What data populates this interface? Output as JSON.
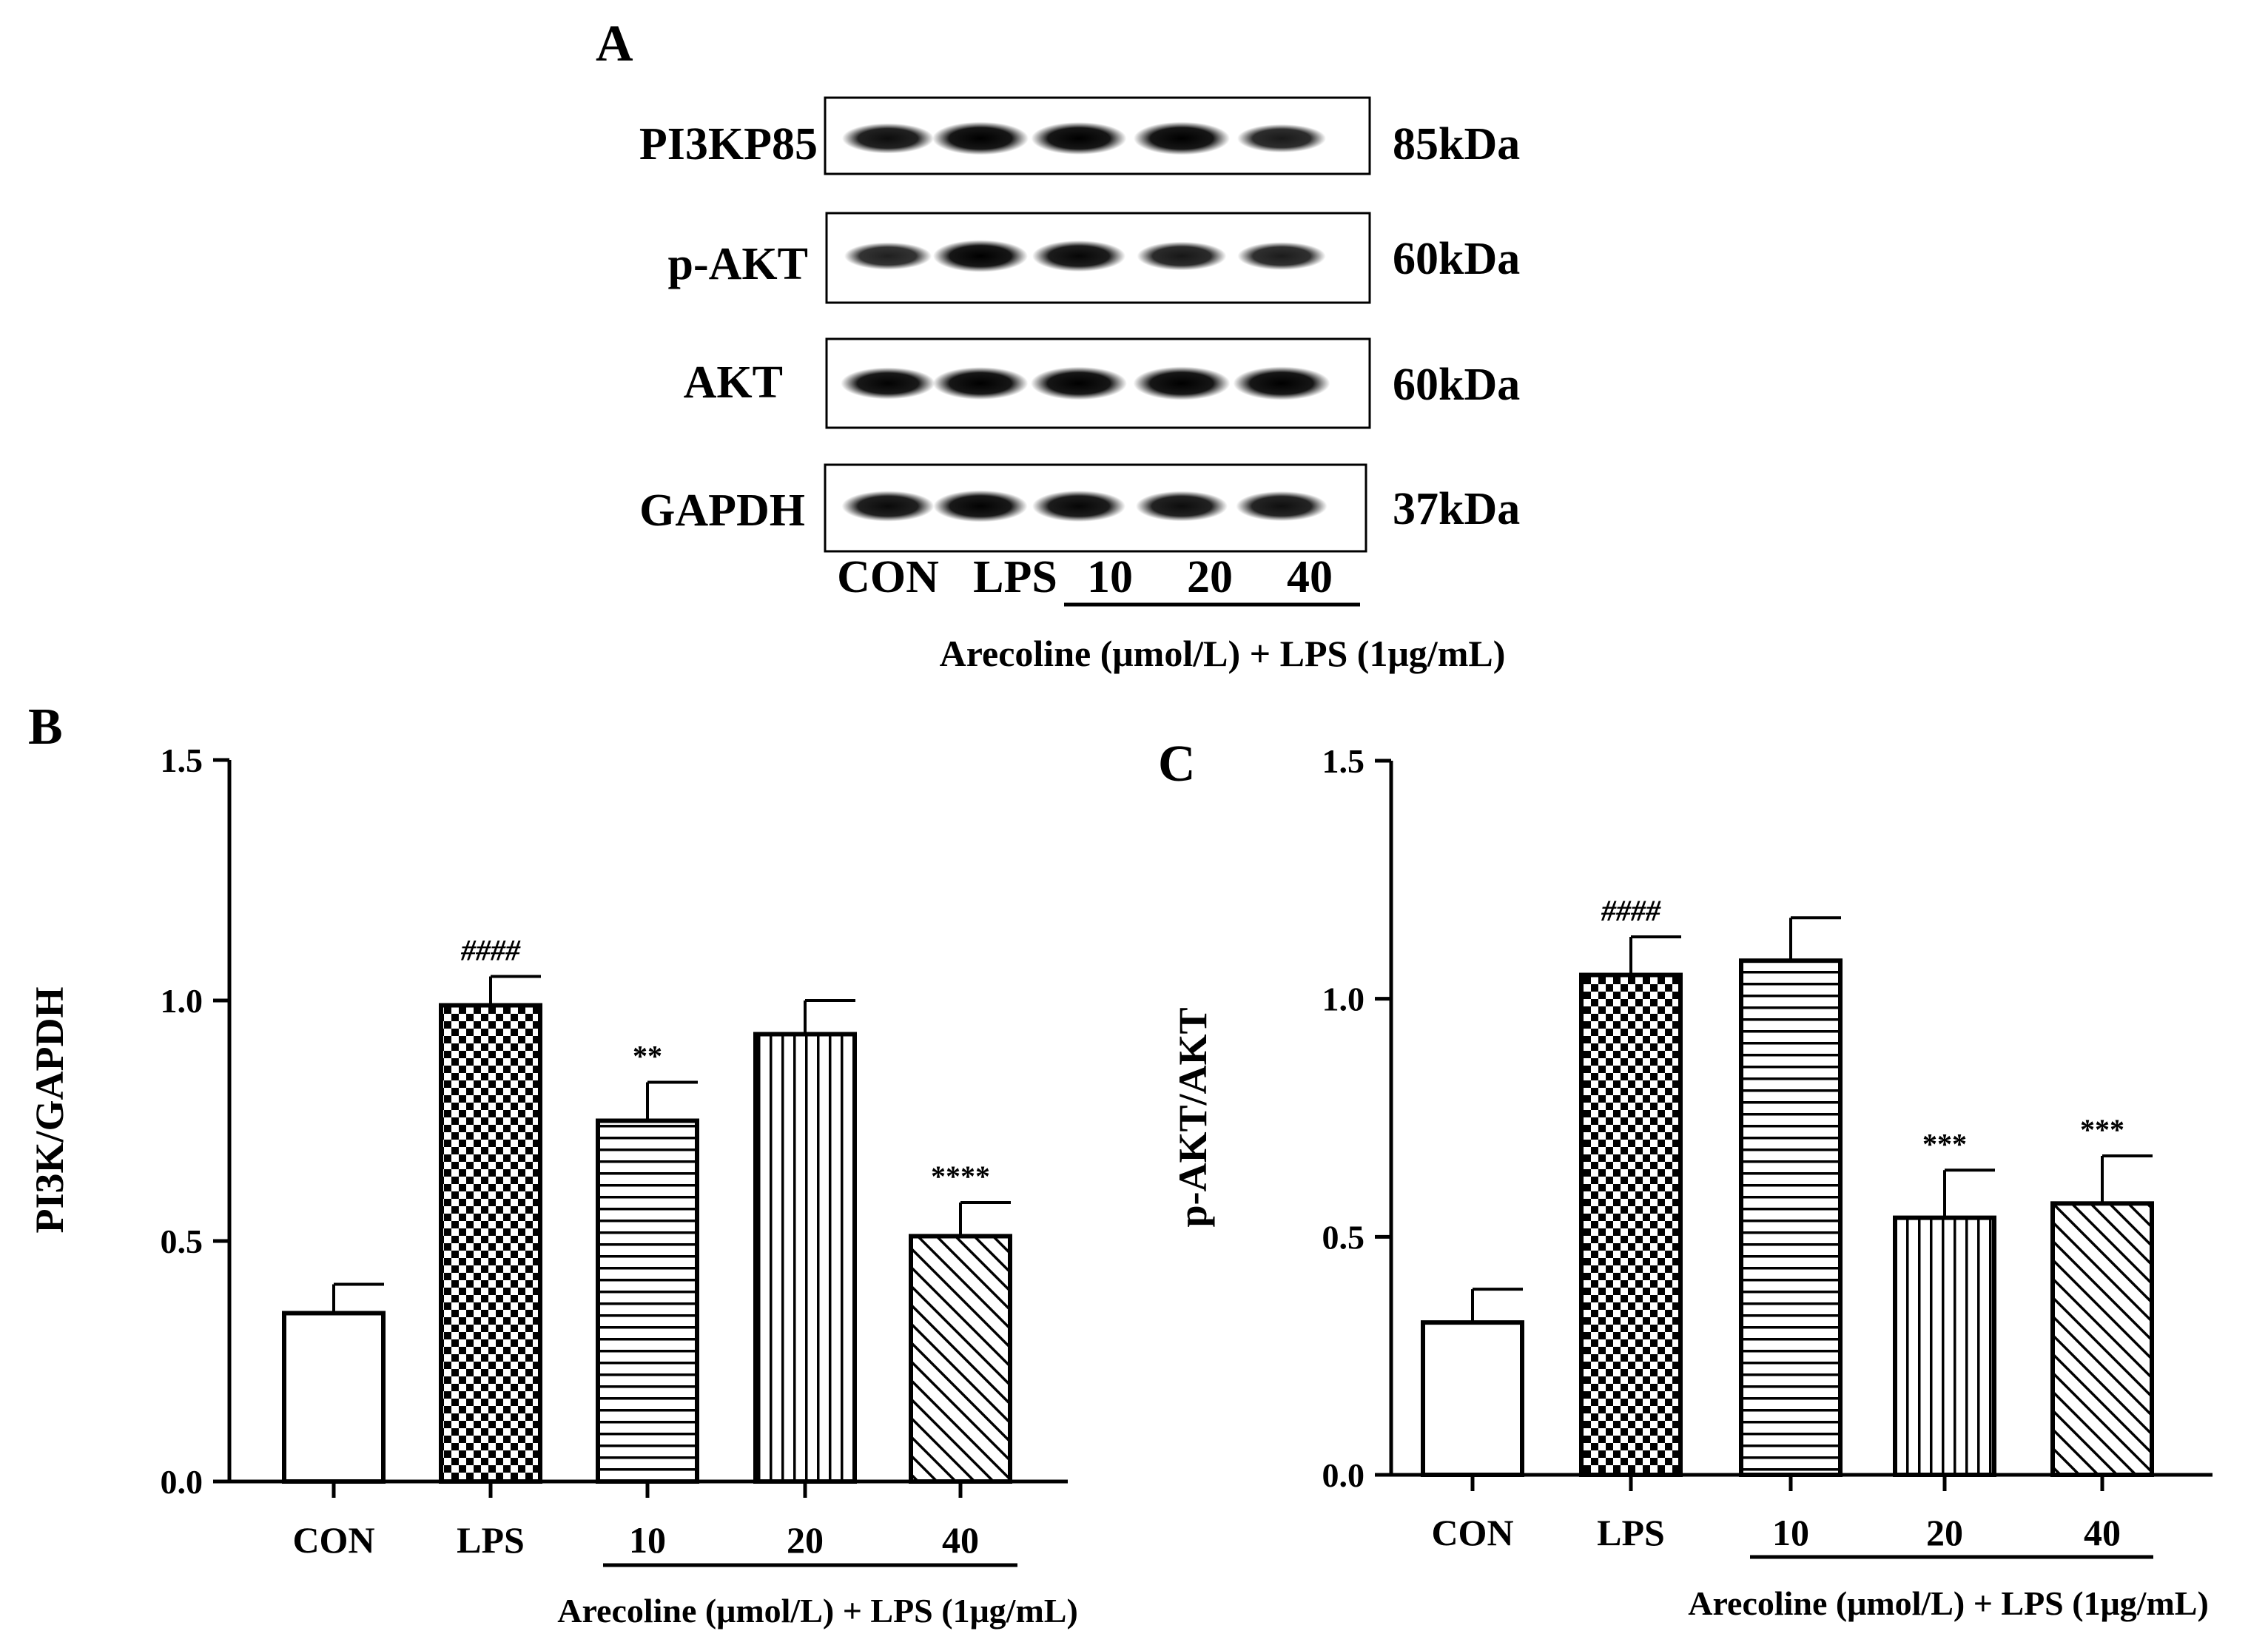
{
  "panel_a": {
    "letter": "A",
    "blots": [
      {
        "protein": "PI3KP85",
        "size": "85kDa",
        "intensities": [
          0.8,
          0.95,
          0.92,
          0.95,
          0.7
        ]
      },
      {
        "protein": "p-AKT",
        "size": "60kDa",
        "intensities": [
          0.65,
          0.9,
          0.85,
          0.72,
          0.68
        ]
      },
      {
        "protein": "AKT",
        "size": "60kDa",
        "intensities": [
          0.88,
          0.92,
          0.95,
          0.97,
          0.97
        ]
      },
      {
        "protein": "GAPDH",
        "size": "37kDa",
        "intensities": [
          0.82,
          0.88,
          0.85,
          0.8,
          0.78
        ]
      }
    ],
    "lanes": [
      "CON",
      "LPS",
      "10",
      "20",
      "40"
    ],
    "treatment_label": "Arecoline (μmol/L) + LPS (1μg/mL)"
  },
  "chart_data": [
    {
      "type": "bar",
      "panel": "B",
      "categories": [
        "CON",
        "LPS",
        "10",
        "20",
        "40"
      ],
      "values": [
        0.35,
        0.99,
        0.75,
        0.93,
        0.51
      ],
      "errors": [
        0.06,
        0.06,
        0.08,
        0.07,
        0.07
      ],
      "annotations": [
        "",
        "####",
        "**",
        "",
        "****"
      ],
      "patterns": [
        "none",
        "checker",
        "hlines",
        "vlines",
        "diagonal"
      ],
      "ylabel": "PI3K/GAPDH",
      "xlabel": "Arecoline (μmol/L) + LPS (1μg/mL)",
      "ylim": [
        0,
        1.5
      ],
      "yticks": [
        "0.0",
        "0.5",
        "1.0",
        "1.5"
      ]
    },
    {
      "type": "bar",
      "panel": "C",
      "categories": [
        "CON",
        "LPS",
        "10",
        "20",
        "40"
      ],
      "values": [
        0.32,
        1.05,
        1.08,
        0.54,
        0.57
      ],
      "errors": [
        0.07,
        0.08,
        0.09,
        0.1,
        0.1
      ],
      "annotations": [
        "",
        "####",
        "",
        "***",
        "***"
      ],
      "patterns": [
        "none",
        "checker",
        "hlines",
        "vlines",
        "diagonal"
      ],
      "ylabel": "p-AKT/AKT",
      "xlabel": "Arecoline (μmol/L) + LPS (1μg/mL)",
      "ylim": [
        0,
        1.5
      ],
      "yticks": [
        "0.0",
        "0.5",
        "1.0",
        "1.5"
      ]
    }
  ]
}
